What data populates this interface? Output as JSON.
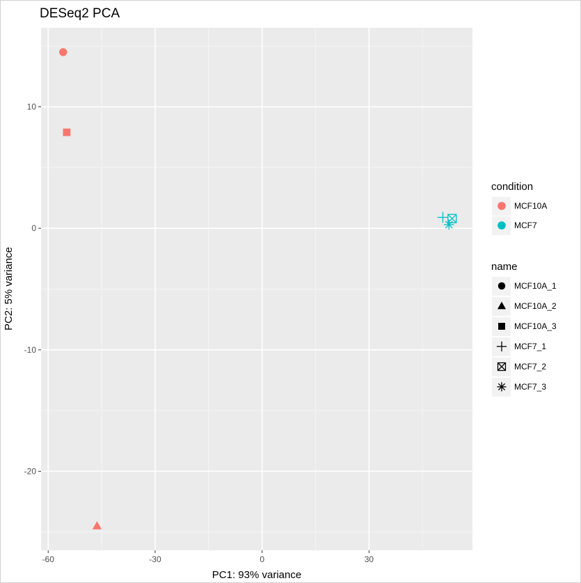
{
  "chart_data": {
    "type": "scatter",
    "title": "DESeq2 PCA",
    "xlabel": "PC1: 93% variance",
    "ylabel": "PC2: 5% variance",
    "xlim": [
      -62,
      59
    ],
    "ylim": [
      -26.5,
      16.5
    ],
    "x_ticks": [
      -60,
      -30,
      0,
      30
    ],
    "y_ticks": [
      10,
      0,
      -10,
      -20
    ],
    "grid": true,
    "legend_position": "right",
    "points": [
      {
        "name": "MCF10A_1",
        "condition": "MCF10A",
        "x": -55.8,
        "y": 14.5
      },
      {
        "name": "MCF10A_2",
        "condition": "MCF10A",
        "x": -46.3,
        "y": -24.5
      },
      {
        "name": "MCF10A_3",
        "condition": "MCF10A",
        "x": -54.8,
        "y": 7.9
      },
      {
        "name": "MCF7_1",
        "condition": "MCF7",
        "x": 50.7,
        "y": 0.9
      },
      {
        "name": "MCF7_2",
        "condition": "MCF7",
        "x": 53.3,
        "y": 0.8
      },
      {
        "name": "MCF7_3",
        "condition": "MCF7",
        "x": 52.4,
        "y": 0.3
      }
    ],
    "legends": {
      "condition": {
        "title": "condition",
        "entries": [
          {
            "label": "MCF10A",
            "color": "#F8766D"
          },
          {
            "label": "MCF7",
            "color": "#00BFC4"
          }
        ]
      },
      "name": {
        "title": "name",
        "entries": [
          {
            "label": "MCF10A_1",
            "shape": "circle"
          },
          {
            "label": "MCF10A_2",
            "shape": "triangle"
          },
          {
            "label": "MCF10A_3",
            "shape": "square"
          },
          {
            "label": "MCF7_1",
            "shape": "plus"
          },
          {
            "label": "MCF7_2",
            "shape": "boxed-x"
          },
          {
            "label": "MCF7_3",
            "shape": "asterisk"
          }
        ]
      }
    }
  }
}
